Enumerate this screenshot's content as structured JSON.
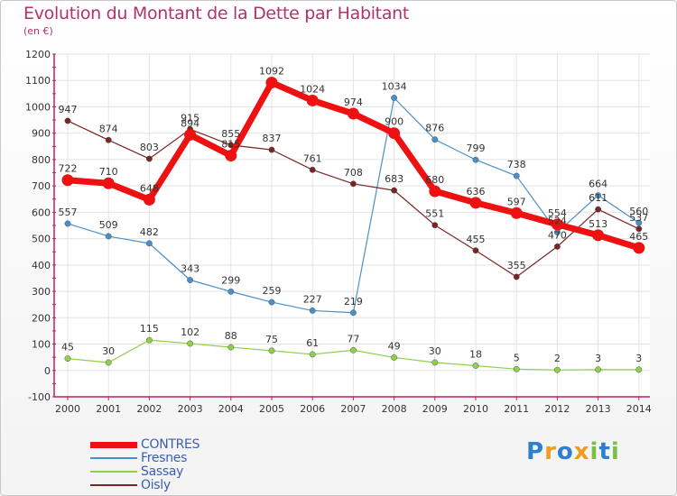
{
  "title": "Evolution du Montant de la Dette par Habitant",
  "unit": "(en €)",
  "logo": {
    "letters": [
      "P",
      "r",
      "o",
      "x",
      "i",
      "t",
      "i"
    ]
  },
  "chart_data": {
    "type": "line",
    "title": "Evolution du Montant de la Dette par Habitant",
    "subtitle": "(en €)",
    "xlabel": "",
    "ylabel": "",
    "x": [
      "2000",
      "2001",
      "2002",
      "2003",
      "2004",
      "2005",
      "2006",
      "2007",
      "2008",
      "2009",
      "2010",
      "2011",
      "2012",
      "2013",
      "2014"
    ],
    "ylim": [
      -100,
      1200
    ],
    "yticks": [
      "-100",
      "0",
      "100",
      "200",
      "300",
      "400",
      "500",
      "600",
      "700",
      "800",
      "900",
      "1000",
      "1100",
      "1200"
    ],
    "grid": true,
    "legend_position": "bottom-left",
    "series": [
      {
        "name": "CONTRES",
        "color": "#ee1111",
        "values": [
          722,
          710,
          648,
          894,
          815,
          1092,
          1024,
          974,
          900,
          680,
          636,
          597,
          554,
          513,
          465
        ],
        "labels": [
          "722",
          "710",
          "648",
          "894",
          "815",
          "1092",
          "1024",
          "974",
          "900",
          "680",
          "636",
          "597",
          "554",
          "513",
          "465"
        ]
      },
      {
        "name": "Fresnes",
        "color": "#4a90c8",
        "values": [
          557,
          509,
          482,
          343,
          299,
          259,
          227,
          219,
          1034,
          876,
          799,
          738,
          524,
          664,
          560
        ],
        "labels": [
          "557",
          "509",
          "482",
          "343",
          "299",
          "259",
          "227",
          "219",
          "1034",
          "876",
          "799",
          "738",
          "524",
          "664",
          "560"
        ]
      },
      {
        "name": "Sassay",
        "color": "#8ed04a",
        "values": [
          45,
          30,
          115,
          102,
          88,
          75,
          61,
          77,
          49,
          30,
          18,
          5,
          2,
          3,
          3
        ],
        "labels": [
          "45",
          "30",
          "115",
          "102",
          "88",
          "75",
          "61",
          "77",
          "49",
          "30",
          "18",
          "5",
          "2",
          "3",
          "3"
        ]
      },
      {
        "name": "Oisly",
        "color": "#7a2424",
        "values": [
          947,
          874,
          803,
          915,
          855,
          837,
          761,
          708,
          683,
          551,
          455,
          355,
          470,
          611,
          537
        ],
        "labels": [
          "947",
          "874",
          "803",
          "915",
          "855",
          "837",
          "761",
          "708",
          "683",
          "551",
          "455",
          "355",
          "470",
          "611",
          "537"
        ]
      }
    ]
  }
}
